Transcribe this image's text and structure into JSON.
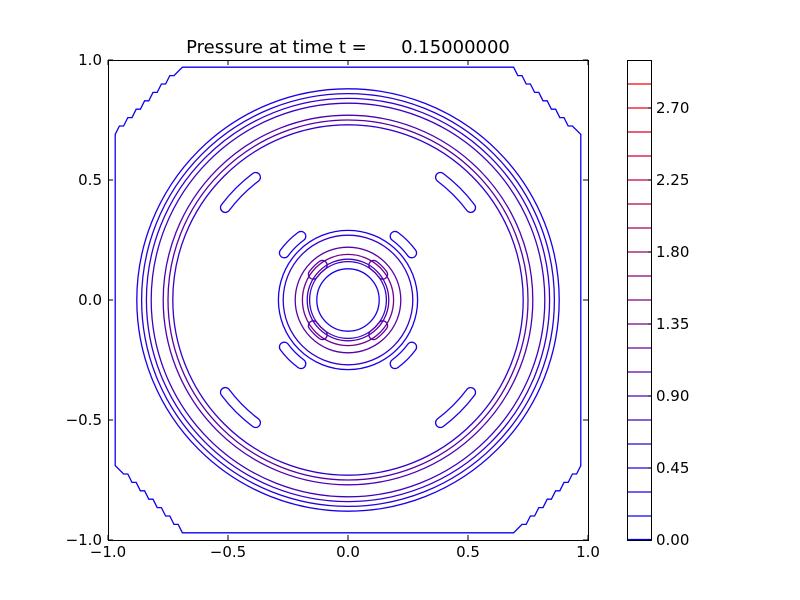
{
  "chart_data": {
    "type": "contour",
    "title": "Pressure at time t =      0.15000000",
    "xlabel": "",
    "ylabel": "",
    "xlim": [
      -1.0,
      1.0
    ],
    "ylim": [
      -1.0,
      1.0
    ],
    "x_ticks": [
      -1.0,
      -0.5,
      0.0,
      0.5,
      1.0
    ],
    "x_tick_labels": [
      "−1.0",
      "−0.5",
      "0.0",
      "0.5",
      "1.0"
    ],
    "y_ticks": [
      -1.0,
      -0.5,
      0.0,
      0.5,
      1.0
    ],
    "y_tick_labels": [
      "−1.0",
      "−0.5",
      "0.0",
      "0.5",
      "1.0"
    ],
    "grid": false,
    "colorbar": {
      "min": 0.0,
      "max": 3.0,
      "levels": [
        0.0,
        0.15,
        0.3,
        0.45,
        0.6,
        0.75,
        0.9,
        1.05,
        1.2,
        1.35,
        1.5,
        1.65,
        1.8,
        1.95,
        2.1,
        2.25,
        2.4,
        2.55,
        2.7,
        2.85
      ],
      "tick_values": [
        0.0,
        0.45,
        0.9,
        1.35,
        1.8,
        2.25,
        2.7
      ],
      "tick_labels": [
        "0.00",
        "0.45",
        "0.90",
        "1.35",
        "1.80",
        "2.25",
        "2.70"
      ],
      "colormap_low": "#0000ff",
      "colormap_high": "#ff0000"
    },
    "contour_lines": [
      {
        "shape": "rounded-square",
        "half_width": 0.97,
        "level": 0.15
      },
      {
        "shape": "circle",
        "radius": 0.88,
        "level": 0.3
      },
      {
        "shape": "circle",
        "radius": 0.86,
        "level": 0.45
      },
      {
        "shape": "circle",
        "radius": 0.84,
        "level": 0.6
      },
      {
        "shape": "circle",
        "radius": 0.82,
        "level": 0.75
      },
      {
        "shape": "circle",
        "radius": 0.77,
        "level": 0.9
      },
      {
        "shape": "circle",
        "radius": 0.75,
        "level": 1.05
      },
      {
        "shape": "circle",
        "radius": 0.73,
        "level": 0.6
      },
      {
        "shape": "circle",
        "radius": 0.29,
        "level": 0.3
      },
      {
        "shape": "circle",
        "radius": 0.27,
        "level": 0.6
      },
      {
        "shape": "circle",
        "radius": 0.22,
        "level": 1.05
      },
      {
        "shape": "circle",
        "radius": 0.19,
        "level": 1.35
      },
      {
        "shape": "circle",
        "radius": 0.17,
        "level": 0.9
      },
      {
        "shape": "circle",
        "radius": 0.16,
        "level": 0.6
      },
      {
        "shape": "circle",
        "radius": 0.13,
        "level": 0.3
      },
      {
        "shape": "arc-island",
        "center_radius": 0.64,
        "angles": [
          45,
          135,
          225,
          315
        ],
        "level": 0.3
      },
      {
        "shape": "arc-island",
        "center_radius": 0.33,
        "angles": [
          45,
          135,
          225,
          315
        ],
        "level": 0.3
      },
      {
        "shape": "arc-island",
        "center_radius": 0.18,
        "angles": [
          45,
          135,
          225,
          315
        ],
        "level": 1.05
      }
    ]
  }
}
